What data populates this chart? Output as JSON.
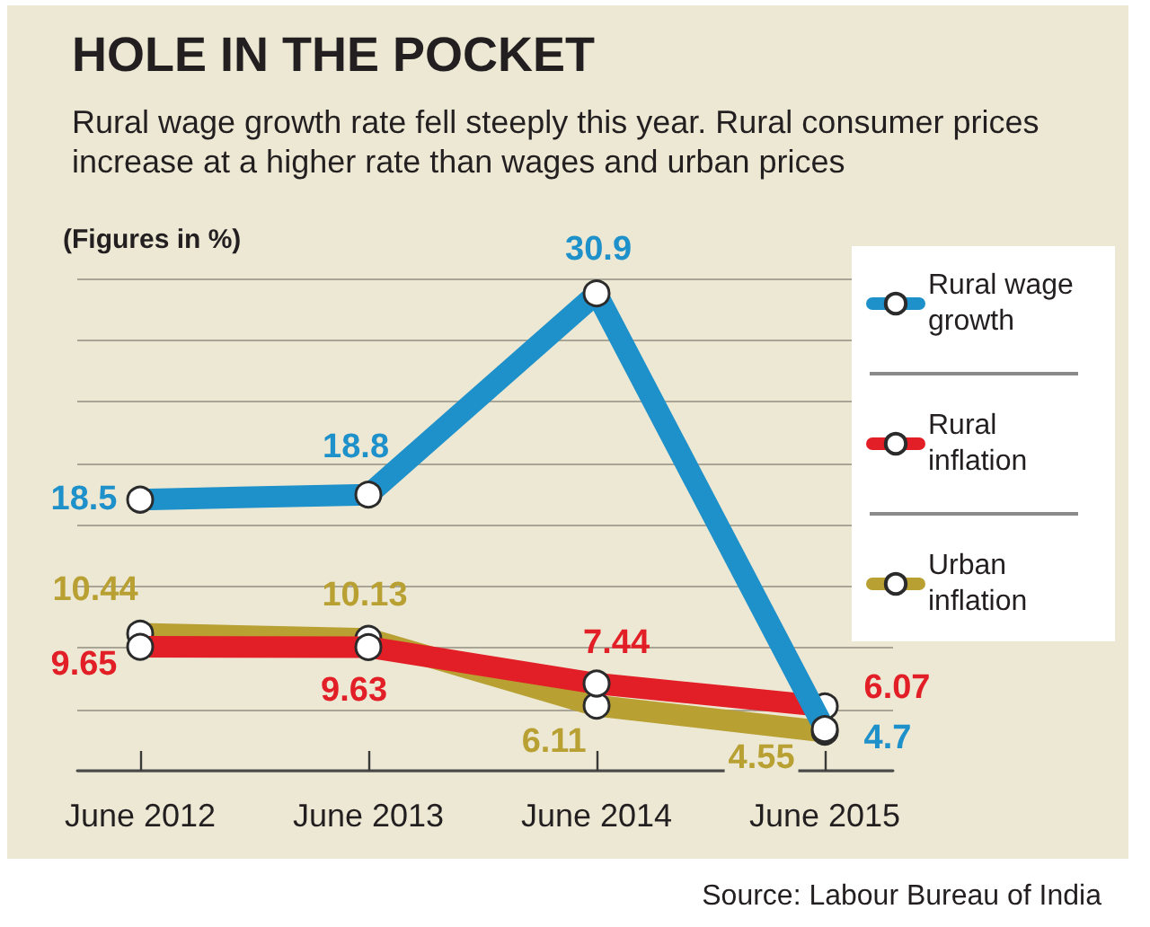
{
  "chart_data": {
    "type": "line",
    "title": "HOLE IN THE POCKET",
    "subtitle": "Rural wage growth rate fell steeply this year. Rural consumer prices increase at a higher rate than wages and urban prices",
    "ylabel": "(Figures in %)",
    "categories": [
      "June 2012",
      "June 2013",
      "June 2014",
      "June 2015"
    ],
    "series": [
      {
        "name": "Rural wage growth",
        "color": "#1e90ca",
        "values": [
          18.5,
          18.8,
          30.9,
          4.7
        ]
      },
      {
        "name": "Rural inflation",
        "color": "#e21e26",
        "values": [
          9.65,
          9.63,
          7.44,
          6.07
        ]
      },
      {
        "name": "Urban inflation",
        "color": "#b8a032",
        "values": [
          10.44,
          10.13,
          6.11,
          4.55
        ]
      }
    ],
    "ylim": [
      2.2,
      31.8
    ],
    "yticks": [
      {
        "value": 2.2,
        "label": null
      },
      {
        "value": 5.9,
        "label": null
      },
      {
        "value": 9.6,
        "label": null
      },
      {
        "value": 13.3,
        "label": null
      },
      {
        "value": 17.0,
        "label": null
      },
      {
        "value": 20.7,
        "label": null
      },
      {
        "value": 24.4,
        "label": null
      },
      {
        "value": 28.1,
        "label": null
      },
      {
        "value": 31.8,
        "label": null
      }
    ],
    "tick_labels": "x",
    "grid": "y",
    "legend": "top right",
    "marker": "circle",
    "data_labels": true,
    "annotations": [
      "Source: Labour Bureau of India"
    ]
  }
}
